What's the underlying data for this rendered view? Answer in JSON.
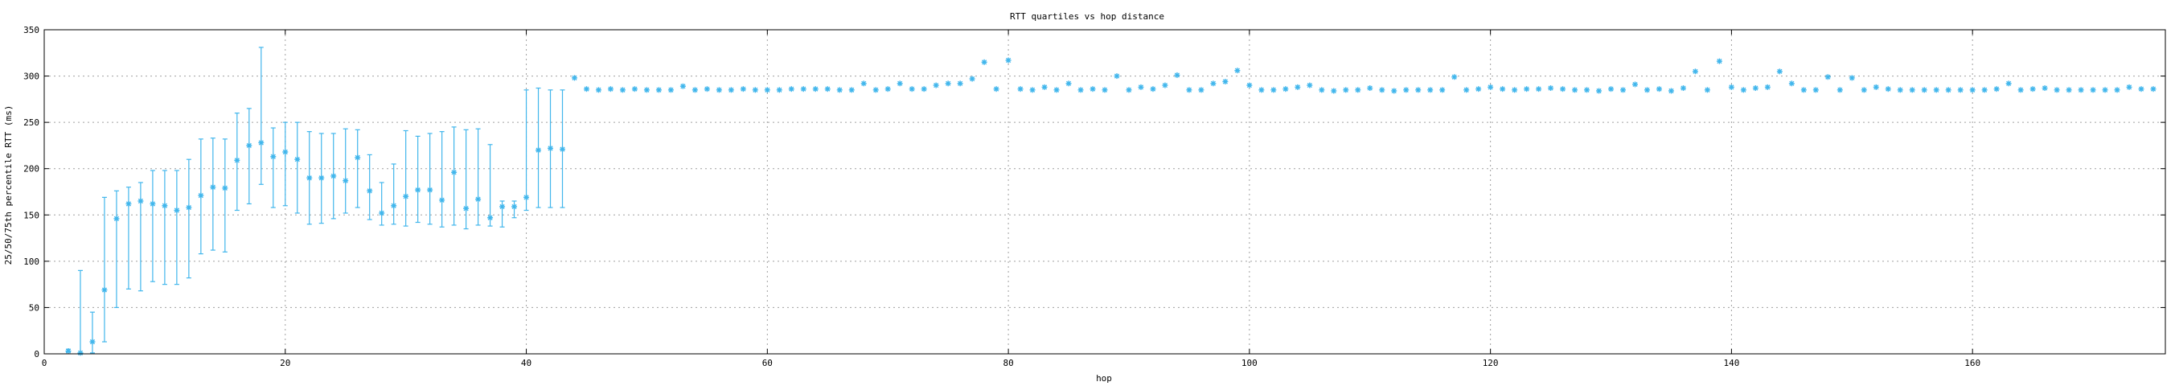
{
  "chart_data": {
    "type": "scatter",
    "title": "RTT quartiles vs hop distance",
    "xlabel": "hop",
    "ylabel": "25/50/75th percentile RTT (ms)",
    "xlim": [
      0,
      176
    ],
    "ylim": [
      0,
      350
    ],
    "xticks": [
      0,
      20,
      40,
      60,
      80,
      100,
      120,
      140,
      160
    ],
    "yticks": [
      0,
      50,
      100,
      150,
      200,
      250,
      300,
      350
    ],
    "grid": true,
    "color": "#41b6ec",
    "marker": "star",
    "series": [
      {
        "errorbars": [
          [
            2,
            3,
            2,
            5
          ],
          [
            3,
            1,
            0,
            90
          ],
          [
            4,
            13,
            1,
            45
          ],
          [
            5,
            69,
            13,
            169
          ],
          [
            6,
            146,
            50,
            176
          ],
          [
            7,
            162,
            70,
            180
          ],
          [
            8,
            165,
            68,
            185
          ],
          [
            9,
            162,
            78,
            198
          ],
          [
            10,
            160,
            75,
            198
          ],
          [
            11,
            155,
            75,
            198
          ],
          [
            12,
            158,
            82,
            210
          ],
          [
            13,
            171,
            108,
            232
          ],
          [
            14,
            180,
            112,
            233
          ],
          [
            15,
            179,
            110,
            232
          ],
          [
            16,
            209,
            155,
            260
          ],
          [
            17,
            225,
            162,
            265
          ],
          [
            18,
            228,
            183,
            331
          ],
          [
            19,
            213,
            158,
            244
          ],
          [
            20,
            218,
            160,
            250
          ],
          [
            21,
            210,
            152,
            250
          ],
          [
            22,
            190,
            140,
            240
          ],
          [
            23,
            190,
            141,
            238
          ],
          [
            24,
            192,
            146,
            238
          ],
          [
            25,
            187,
            152,
            243
          ],
          [
            26,
            212,
            158,
            242
          ],
          [
            27,
            176,
            145,
            215
          ],
          [
            28,
            152,
            139,
            185
          ],
          [
            29,
            160,
            140,
            205
          ],
          [
            30,
            170,
            138,
            241
          ],
          [
            31,
            177,
            142,
            235
          ],
          [
            32,
            177,
            140,
            238
          ],
          [
            33,
            166,
            137,
            240
          ],
          [
            34,
            196,
            139,
            245
          ],
          [
            35,
            157,
            135,
            242
          ],
          [
            36,
            167,
            139,
            243
          ],
          [
            37,
            147,
            138,
            226
          ],
          [
            38,
            159,
            137,
            165
          ],
          [
            39,
            159,
            147,
            165
          ],
          [
            40,
            169,
            155,
            285
          ],
          [
            41,
            220,
            158,
            287
          ],
          [
            42,
            222,
            158,
            285
          ],
          [
            43,
            221,
            158,
            285
          ]
        ],
        "points": [
          [
            44,
            298
          ],
          [
            45,
            286
          ],
          [
            46,
            285
          ],
          [
            47,
            286
          ],
          [
            48,
            285
          ],
          [
            49,
            286
          ],
          [
            50,
            285
          ],
          [
            51,
            285
          ],
          [
            52,
            285
          ],
          [
            53,
            289
          ],
          [
            54,
            285
          ],
          [
            55,
            286
          ],
          [
            56,
            285
          ],
          [
            57,
            285
          ],
          [
            58,
            286
          ],
          [
            59,
            285
          ],
          [
            60,
            285
          ],
          [
            61,
            285
          ],
          [
            62,
            286
          ],
          [
            63,
            286
          ],
          [
            64,
            286
          ],
          [
            65,
            286
          ],
          [
            66,
            285
          ],
          [
            67,
            285
          ],
          [
            68,
            292
          ],
          [
            69,
            285
          ],
          [
            70,
            286
          ],
          [
            71,
            292
          ],
          [
            72,
            286
          ],
          [
            73,
            286
          ],
          [
            74,
            290
          ],
          [
            75,
            292
          ],
          [
            76,
            292
          ],
          [
            77,
            297
          ],
          [
            78,
            315
          ],
          [
            79,
            286
          ],
          [
            80,
            317
          ],
          [
            81,
            286
          ],
          [
            82,
            285
          ],
          [
            83,
            288
          ],
          [
            84,
            285
          ],
          [
            85,
            292
          ],
          [
            86,
            285
          ],
          [
            87,
            286
          ],
          [
            88,
            285
          ],
          [
            89,
            300
          ],
          [
            90,
            285
          ],
          [
            91,
            288
          ],
          [
            92,
            286
          ],
          [
            93,
            290
          ],
          [
            94,
            301
          ],
          [
            95,
            285
          ],
          [
            96,
            285
          ],
          [
            97,
            292
          ],
          [
            98,
            294
          ],
          [
            99,
            306
          ],
          [
            100,
            290
          ],
          [
            101,
            285
          ],
          [
            102,
            285
          ],
          [
            103,
            286
          ],
          [
            104,
            288
          ],
          [
            105,
            290
          ],
          [
            106,
            285
          ],
          [
            107,
            284
          ],
          [
            108,
            285
          ],
          [
            109,
            285
          ],
          [
            110,
            287
          ],
          [
            111,
            285
          ],
          [
            112,
            284
          ],
          [
            113,
            285
          ],
          [
            114,
            285
          ],
          [
            115,
            285
          ],
          [
            116,
            285
          ],
          [
            117,
            299
          ],
          [
            118,
            285
          ],
          [
            119,
            286
          ],
          [
            120,
            288
          ],
          [
            121,
            286
          ],
          [
            122,
            285
          ],
          [
            123,
            286
          ],
          [
            124,
            286
          ],
          [
            125,
            287
          ],
          [
            126,
            286
          ],
          [
            127,
            285
          ],
          [
            128,
            285
          ],
          [
            129,
            284
          ],
          [
            130,
            286
          ],
          [
            131,
            285
          ],
          [
            132,
            291
          ],
          [
            133,
            285
          ],
          [
            134,
            286
          ],
          [
            135,
            284
          ],
          [
            136,
            287
          ],
          [
            137,
            305
          ],
          [
            138,
            285
          ],
          [
            139,
            316
          ],
          [
            140,
            288
          ],
          [
            141,
            285
          ],
          [
            142,
            287
          ],
          [
            143,
            288
          ],
          [
            144,
            305
          ],
          [
            145,
            292
          ],
          [
            146,
            285
          ],
          [
            147,
            285
          ],
          [
            148,
            299
          ],
          [
            149,
            285
          ],
          [
            150,
            298
          ],
          [
            151,
            285
          ],
          [
            152,
            288
          ],
          [
            153,
            286
          ],
          [
            154,
            285
          ],
          [
            155,
            285
          ],
          [
            156,
            285
          ],
          [
            157,
            285
          ],
          [
            158,
            285
          ],
          [
            159,
            285
          ],
          [
            160,
            285
          ],
          [
            161,
            285
          ],
          [
            162,
            286
          ],
          [
            163,
            292
          ],
          [
            164,
            285
          ],
          [
            165,
            286
          ],
          [
            166,
            287
          ],
          [
            167,
            285
          ],
          [
            168,
            285
          ],
          [
            169,
            285
          ],
          [
            170,
            285
          ],
          [
            171,
            285
          ],
          [
            172,
            285
          ],
          [
            173,
            288
          ],
          [
            174,
            286
          ],
          [
            175,
            286
          ]
        ]
      }
    ]
  }
}
